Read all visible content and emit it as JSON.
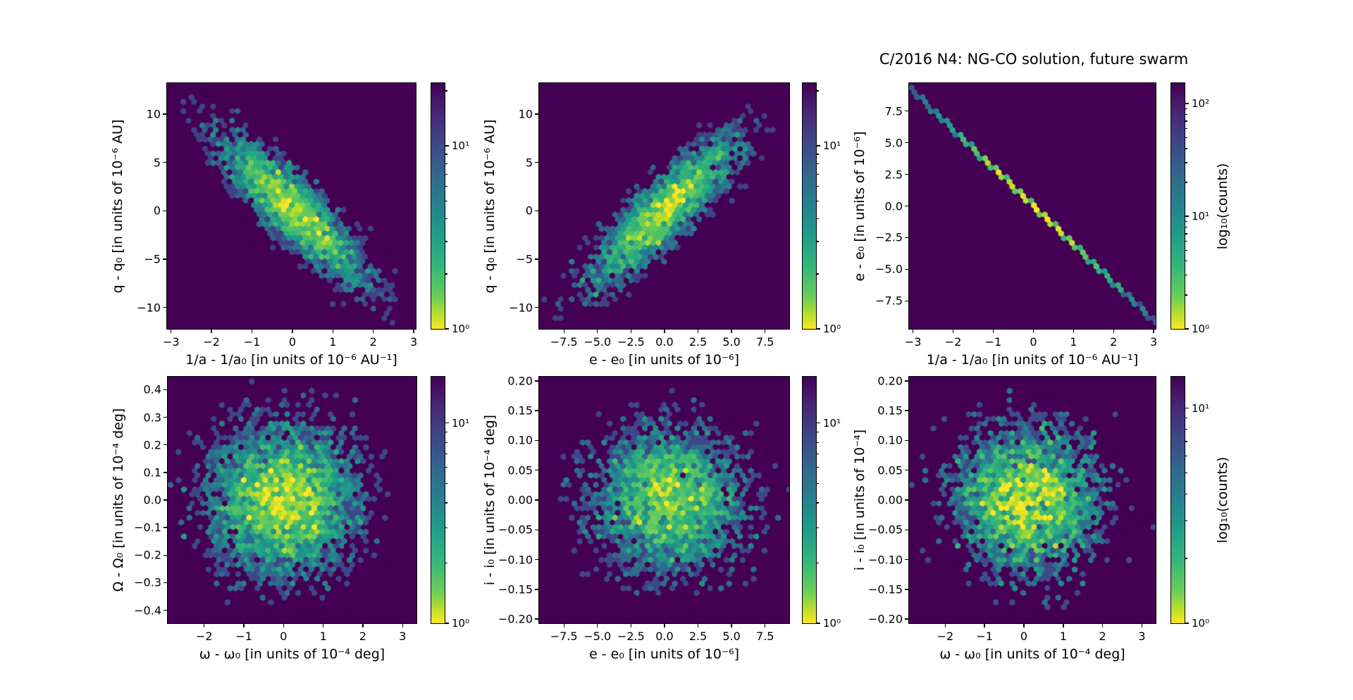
{
  "figure": {
    "title": "C/2016 N4: NG-CO solution, future swarm",
    "background": "#ffffff"
  },
  "colors": {
    "plot_background": "#440154",
    "axis": "#000000",
    "text": "#000000",
    "viridis_stops": [
      {
        "t": 0.0,
        "hex": "#440154"
      },
      {
        "t": 0.125,
        "hex": "#482878"
      },
      {
        "t": 0.25,
        "hex": "#3e4989"
      },
      {
        "t": 0.375,
        "hex": "#31688e"
      },
      {
        "t": 0.5,
        "hex": "#26828e"
      },
      {
        "t": 0.625,
        "hex": "#1f9e89"
      },
      {
        "t": 0.75,
        "hex": "#35b779"
      },
      {
        "t": 0.875,
        "hex": "#6ece58"
      },
      {
        "t": 0.9375,
        "hex": "#b5de2b"
      },
      {
        "t": 1.0,
        "hex": "#fde725"
      }
    ]
  },
  "chart_data": [
    {
      "name": "q_vs_inv_a",
      "type": "heatmap",
      "subtype": "hexbin",
      "xlabel": "1/a - 1/a₀ [in units of 10⁻⁶ AU⁻¹]",
      "ylabel": "q - q₀ [in units of 10⁻⁶ AU]",
      "xlim": [
        -3.1,
        3.05
      ],
      "ylim": [
        -12.2,
        13.2
      ],
      "xtick_values": [
        -3,
        -2,
        -1,
        0,
        1,
        2,
        3
      ],
      "xtick_labels": [
        "−3",
        "−2",
        "−1",
        "0",
        "1",
        "2",
        "3"
      ],
      "ytick_values": [
        10,
        5,
        0,
        -5,
        -10
      ],
      "ytick_labels": [
        "10",
        "5",
        "0",
        "−5",
        "−10"
      ],
      "distribution": {
        "kind": "gaussian2d",
        "center": [
          0,
          0.2
        ],
        "sigma": [
          1.02,
          4.3
        ],
        "rho": -0.87,
        "peak_count": 18,
        "seed": 11
      },
      "colorbar": {
        "scale": "log",
        "vmin": 1,
        "vmax": 22,
        "tick_values": [
          10,
          1
        ],
        "tick_labels": [
          "10¹",
          "10⁰"
        ],
        "label": null
      }
    },
    {
      "name": "q_vs_e",
      "type": "heatmap",
      "subtype": "hexbin",
      "xlabel": "e - e₀ [in units of 10⁻⁶]",
      "ylabel": "q - q₀ [in units of 10⁻⁶ AU]",
      "xlim": [
        -9.35,
        9.3
      ],
      "ylim": [
        -12.2,
        13.2
      ],
      "xtick_values": [
        -7.5,
        -5.0,
        -2.5,
        0.0,
        2.5,
        5.0,
        7.5
      ],
      "xtick_labels": [
        "−7.5",
        "−5.0",
        "−2.5",
        "0.0",
        "2.5",
        "5.0",
        "7.5"
      ],
      "ytick_values": [
        10,
        5,
        0,
        -5,
        -10
      ],
      "ytick_labels": [
        "10",
        "5",
        "0",
        "−5",
        "−10"
      ],
      "distribution": {
        "kind": "gaussian2d",
        "center": [
          0,
          0
        ],
        "sigma": [
          3.1,
          4.3
        ],
        "rho": 0.87,
        "peak_count": 18,
        "seed": 22
      },
      "colorbar": {
        "scale": "log",
        "vmin": 1,
        "vmax": 22,
        "tick_values": [
          10,
          1
        ],
        "tick_labels": [
          "10¹",
          "10⁰"
        ],
        "label": null
      }
    },
    {
      "name": "e_vs_inv_a",
      "type": "heatmap",
      "subtype": "hexbin",
      "xlabel": "1/a - 1/a₀ [in units of 10⁻⁶ AU⁻¹]",
      "ylabel": "e - e₀ [in units of 10⁻⁶]",
      "xlim": [
        -3.1,
        3.05
      ],
      "ylim": [
        -9.7,
        9.7
      ],
      "xtick_values": [
        -3,
        -2,
        -1,
        0,
        1,
        2,
        3
      ],
      "xtick_labels": [
        "−3",
        "−2",
        "−1",
        "0",
        "1",
        "2",
        "3"
      ],
      "ytick_values": [
        7.5,
        5.0,
        2.5,
        0.0,
        -2.5,
        -5.0,
        -7.5
      ],
      "ytick_labels": [
        "7.5",
        "5.0",
        "2.5",
        "0.0",
        "−2.5",
        "−5.0",
        "−7.5"
      ],
      "distribution": {
        "kind": "ridge_line",
        "slope": -3.02,
        "sigma_along_x": 1.15,
        "peak_count": 160,
        "seed": 33
      },
      "colorbar": {
        "scale": "log",
        "vmin": 1,
        "vmax": 152,
        "tick_values": [
          100,
          10,
          1
        ],
        "tick_labels": [
          "10²",
          "10¹",
          "10⁰"
        ],
        "label": "log₁₀(counts)"
      }
    },
    {
      "name": "Omega_vs_omega",
      "type": "heatmap",
      "subtype": "hexbin",
      "xlabel": "ω - ω₀ [in units of 10⁻⁴ deg]",
      "ylabel": "Ω - Ω₀ [in units of 10⁻⁴ deg]",
      "xlim": [
        -2.92,
        3.35
      ],
      "ylim": [
        -0.447,
        0.447
      ],
      "xtick_values": [
        -2,
        -1,
        0,
        1,
        2,
        3
      ],
      "xtick_labels": [
        "−2",
        "−1",
        "0",
        "1",
        "2",
        "3"
      ],
      "ytick_values": [
        0.4,
        0.3,
        0.2,
        0.1,
        0.0,
        -0.1,
        -0.2,
        -0.3,
        -0.4
      ],
      "ytick_labels": [
        "0.4",
        "0.3",
        "0.2",
        "0.1",
        "0.0",
        "−0.1",
        "−0.2",
        "−0.3",
        "−0.4"
      ],
      "distribution": {
        "kind": "gaussian2d",
        "center": [
          0,
          0
        ],
        "sigma": [
          1.05,
          0.155
        ],
        "rho": 0,
        "peak_count": 14,
        "seed": 44
      },
      "colorbar": {
        "scale": "log",
        "vmin": 1,
        "vmax": 17,
        "tick_values": [
          10,
          1
        ],
        "tick_labels": [
          "10¹",
          "10⁰"
        ],
        "label": null
      }
    },
    {
      "name": "i_vs_e",
      "type": "heatmap",
      "subtype": "hexbin",
      "xlabel": "e - e₀ [in units of 10⁻⁶]",
      "ylabel": "i - i₀ [in units of 10⁻⁴ deg]",
      "xlim": [
        -9.35,
        9.3
      ],
      "ylim": [
        -0.207,
        0.207
      ],
      "xtick_values": [
        -7.5,
        -5.0,
        -2.5,
        0.0,
        2.5,
        5.0,
        7.5
      ],
      "xtick_labels": [
        "−7.5",
        "−5.0",
        "−2.5",
        "0.0",
        "2.5",
        "5.0",
        "7.5"
      ],
      "ytick_values": [
        0.2,
        0.15,
        0.1,
        0.05,
        0.0,
        -0.05,
        -0.1,
        -0.15,
        -0.2
      ],
      "ytick_labels": [
        "0.20",
        "0.15",
        "0.10",
        "0.05",
        "0.00",
        "−0.05",
        "−0.10",
        "−0.15",
        "−0.20"
      ],
      "distribution": {
        "kind": "gaussian2d",
        "center": [
          0.3,
          0
        ],
        "sigma": [
          3.1,
          0.068
        ],
        "rho": 0,
        "peak_count": 12,
        "seed": 55
      },
      "colorbar": {
        "scale": "log",
        "vmin": 1,
        "vmax": 17,
        "tick_values": [
          10,
          1
        ],
        "tick_labels": [
          "10¹",
          "10⁰"
        ],
        "label": null
      }
    },
    {
      "name": "i_vs_omega",
      "type": "heatmap",
      "subtype": "hexbin",
      "xlabel": "ω - ω₀ [in units of 10⁻⁴ deg]",
      "ylabel": "i - i₀ [in units of 10⁻⁴]",
      "xlim": [
        -2.92,
        3.35
      ],
      "ylim": [
        -0.207,
        0.207
      ],
      "xtick_values": [
        -2,
        -1,
        0,
        1,
        2,
        3
      ],
      "xtick_labels": [
        "−2",
        "−1",
        "0",
        "1",
        "2",
        "3"
      ],
      "ytick_values": [
        0.2,
        0.15,
        0.1,
        0.05,
        0.0,
        -0.05,
        -0.1,
        -0.15,
        -0.2
      ],
      "ytick_labels": [
        "0.20",
        "0.15",
        "0.10",
        "0.05",
        "0.00",
        "−0.05",
        "−0.10",
        "−0.15",
        "−0.20"
      ],
      "distribution": {
        "kind": "gaussian2d",
        "center": [
          0.1,
          0
        ],
        "sigma": [
          1.05,
          0.068
        ],
        "rho": 0,
        "peak_count": 12,
        "seed": 66
      },
      "colorbar": {
        "scale": "log",
        "vmin": 1,
        "vmax": 14,
        "tick_values": [
          10,
          1
        ],
        "tick_labels": [
          "10¹",
          "10⁰"
        ],
        "label": "log₁₀(counts)"
      }
    }
  ]
}
